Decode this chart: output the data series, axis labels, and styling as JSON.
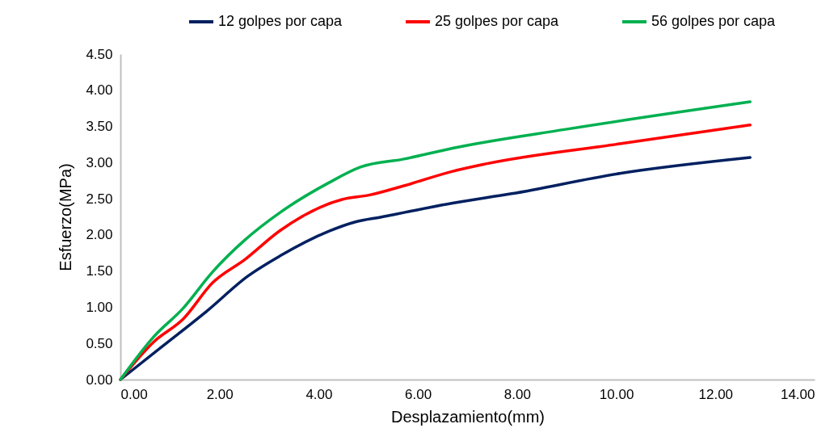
{
  "chart_data": {
    "type": "line",
    "xlabel": "Desplazamiento(mm)",
    "ylabel": "Esfuerzo(MPa)",
    "xlim": [
      0,
      14
    ],
    "xticks": [
      {
        "value": 0,
        "label": "0.00"
      },
      {
        "value": 2,
        "label": "2.00"
      },
      {
        "value": 4,
        "label": "4.00"
      },
      {
        "value": 6,
        "label": "6.00"
      },
      {
        "value": 8,
        "label": "8.00"
      },
      {
        "value": 10,
        "label": "10.00"
      },
      {
        "value": 12,
        "label": "12.00"
      },
      {
        "value": 14,
        "label": "14.00"
      }
    ],
    "ylim": [
      0,
      4.5
    ],
    "yticks": [
      {
        "value": 0,
        "label": "0.00"
      },
      {
        "value": 0.5,
        "label": "0.50"
      },
      {
        "value": 1,
        "label": "1.00"
      },
      {
        "value": 1.5,
        "label": "1.50"
      },
      {
        "value": 2,
        "label": "2.00"
      },
      {
        "value": 2.5,
        "label": "2.50"
      },
      {
        "value": 3,
        "label": "3.00"
      },
      {
        "value": 3.5,
        "label": "3.50"
      },
      {
        "value": 4,
        "label": "4.00"
      },
      {
        "value": 4.5,
        "label": "4.50"
      }
    ],
    "grid": false,
    "legend": "top right",
    "marker": "none",
    "line_style": "solid",
    "series": [
      {
        "name": "12 golpes por capa",
        "color": "#002060",
        "x": [
          0,
          0.83,
          1.75,
          2.57,
          3.22,
          4.2,
          4.74,
          5.28,
          5.72,
          6.7,
          7.89,
          10.07,
          12.7
        ],
        "values": [
          0,
          0.45,
          0.95,
          1.43,
          1.71,
          2.05,
          2.18,
          2.25,
          2.31,
          2.44,
          2.57,
          2.85,
          3.07
        ]
      },
      {
        "name": "25 golpes por capa",
        "color": "#ff0000",
        "x": [
          0,
          0.67,
          1.27,
          1.86,
          2.51,
          3.22,
          4.47,
          5.01,
          5.72,
          6.7,
          7.35,
          10.07,
          12.7
        ],
        "values": [
          0,
          0.52,
          0.84,
          1.34,
          1.66,
          2.06,
          2.49,
          2.55,
          2.68,
          2.88,
          2.98,
          3.26,
          3.52
        ]
      },
      {
        "name": "56 golpes por capa",
        "color": "#00b050",
        "x": [
          0,
          0.67,
          1.27,
          1.86,
          2.51,
          3.22,
          4.2,
          4.85,
          5.72,
          6.7,
          8.98,
          12.7
        ],
        "values": [
          0,
          0.59,
          0.99,
          1.49,
          1.93,
          2.31,
          2.72,
          2.94,
          3.05,
          3.2,
          3.46,
          3.84
        ]
      }
    ]
  }
}
